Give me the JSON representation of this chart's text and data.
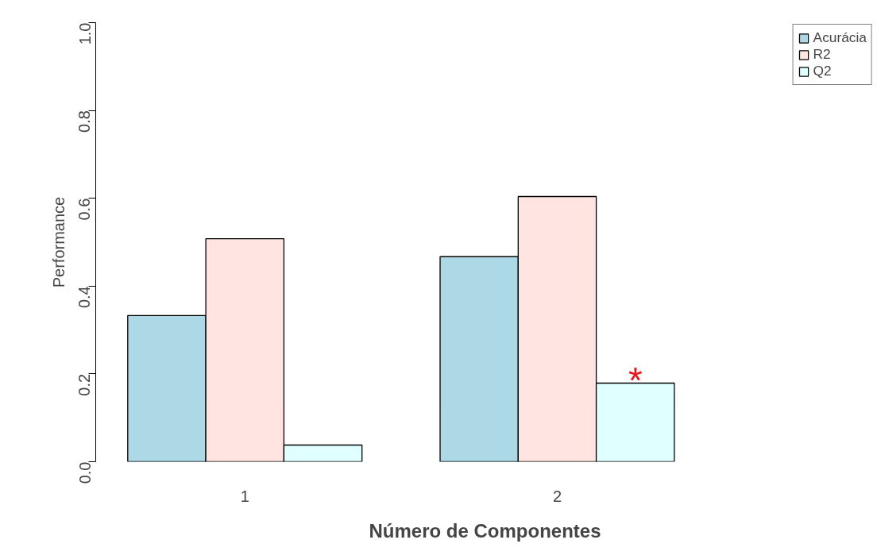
{
  "chart_data": {
    "type": "bar",
    "xlabel": "Número de Componentes",
    "ylabel": "Performance",
    "categories": [
      "1",
      "2"
    ],
    "series": [
      {
        "name": "Acurácia",
        "color": "#add8e6",
        "values": [
          0.333,
          0.467
        ]
      },
      {
        "name": "R2",
        "color": "#ffe4e1",
        "values": [
          0.508,
          0.604
        ]
      },
      {
        "name": "Q2",
        "color": "#e0ffff",
        "values": [
          0.038,
          0.179
        ]
      }
    ],
    "ylim": [
      0,
      1
    ],
    "yticks": [
      {
        "value": 0,
        "label": "0.0"
      },
      0.2,
      0.4,
      0.6,
      0.8,
      {
        "value": 1,
        "label": "1.0"
      }
    ],
    "annotations": [
      "*"
    ],
    "legend": "top right",
    "grid": false
  }
}
